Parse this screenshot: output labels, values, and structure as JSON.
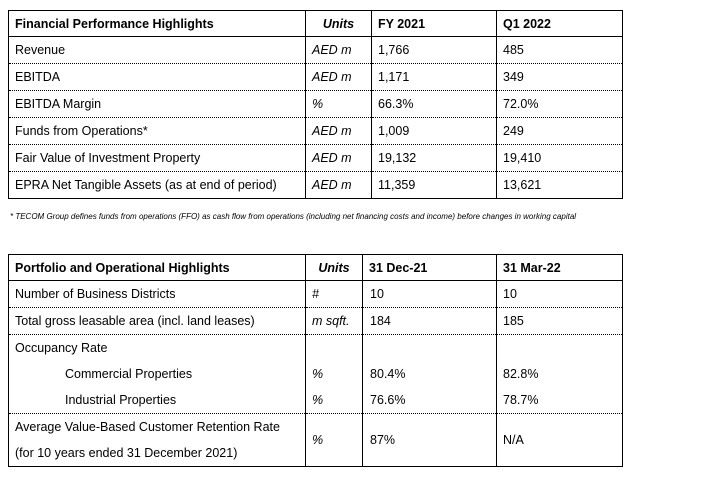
{
  "financial": {
    "headers": [
      "Financial Performance Highlights",
      "Units",
      "FY 2021",
      "Q1 2022"
    ],
    "rows": [
      [
        "Revenue",
        "AED m",
        "1,766",
        "485"
      ],
      [
        "EBITDA",
        "AED m",
        "1,171",
        "349"
      ],
      [
        "EBITDA Margin",
        "%",
        "66.3%",
        "72.0%"
      ],
      [
        "Funds from Operations*",
        "AED m",
        "1,009",
        "249"
      ],
      [
        "Fair Value of Investment Property",
        "AED m",
        "19,132",
        "19,410"
      ],
      [
        "EPRA Net Tangible Assets (as at end of period)",
        "AED m",
        "11,359",
        "13,621"
      ]
    ]
  },
  "footnote": "* TECOM Group defines funds from operations (FFO) as cash flow from operations (including net financing costs and income) before changes in working capital",
  "portfolio": {
    "headers": [
      "Portfolio and Operational Highlights",
      "Units",
      "31 Dec-21",
      "31 Mar-22"
    ],
    "rows": [
      [
        "Number of Business Districts",
        "#",
        "10",
        "10"
      ],
      [
        "Total gross leasable area (incl. land leases)",
        "m sqft.",
        "184",
        "185"
      ]
    ],
    "occupancy_label": "Occupancy Rate",
    "occupancy_rows": [
      [
        "Commercial Properties",
        "%",
        "80.4%",
        "82.8%"
      ],
      [
        "Industrial Properties",
        "%",
        "76.6%",
        "78.7%"
      ]
    ],
    "retention": {
      "label_line1": "Average Value-Based Customer Retention Rate",
      "label_line2": "(for 10 years ended 31 December 2021)",
      "units": "%",
      "v1": "87%",
      "v2": "N/A"
    }
  }
}
